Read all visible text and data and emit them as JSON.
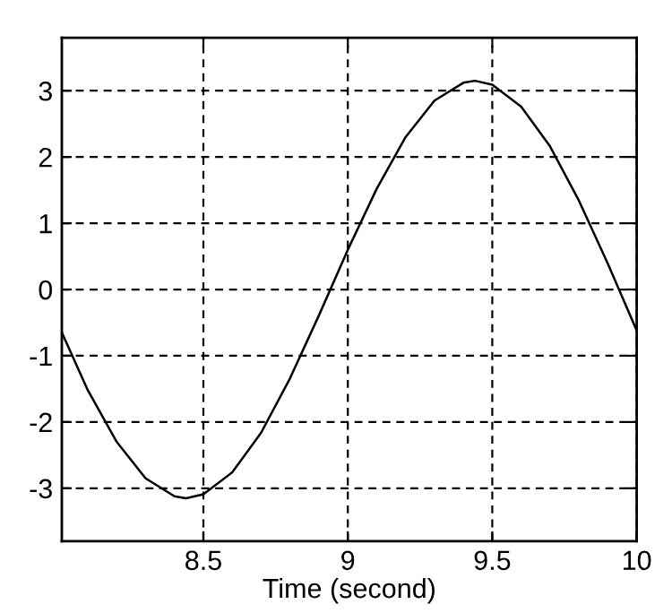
{
  "chart_data": {
    "type": "line",
    "xlabel": "Time (second)",
    "x": [
      8.01,
      8.1,
      8.2,
      8.3,
      8.4,
      8.44,
      8.5,
      8.6,
      8.7,
      8.8,
      8.9,
      9.0,
      9.1,
      9.2,
      9.3,
      9.4,
      9.44,
      9.5,
      9.6,
      9.7,
      9.8,
      9.9,
      10.0
    ],
    "series": [
      {
        "color": "#000000",
        "values": [
          -0.65,
          -1.52,
          -2.3,
          -2.85,
          -3.12,
          -3.15,
          -3.09,
          -2.76,
          -2.16,
          -1.34,
          -0.39,
          0.6,
          1.52,
          2.3,
          2.85,
          3.12,
          3.15,
          3.09,
          2.76,
          2.16,
          1.34,
          0.39,
          -0.62
        ]
      }
    ],
    "xlim": [
      8.01,
      10
    ],
    "ylim": [
      -3.8,
      3.8
    ],
    "xticks": [
      8.5,
      9,
      9.5,
      10
    ],
    "yticks": [
      -3,
      -2,
      -1,
      0,
      1,
      2,
      3
    ],
    "grid": true,
    "line_style": "solid",
    "marker": "none"
  }
}
